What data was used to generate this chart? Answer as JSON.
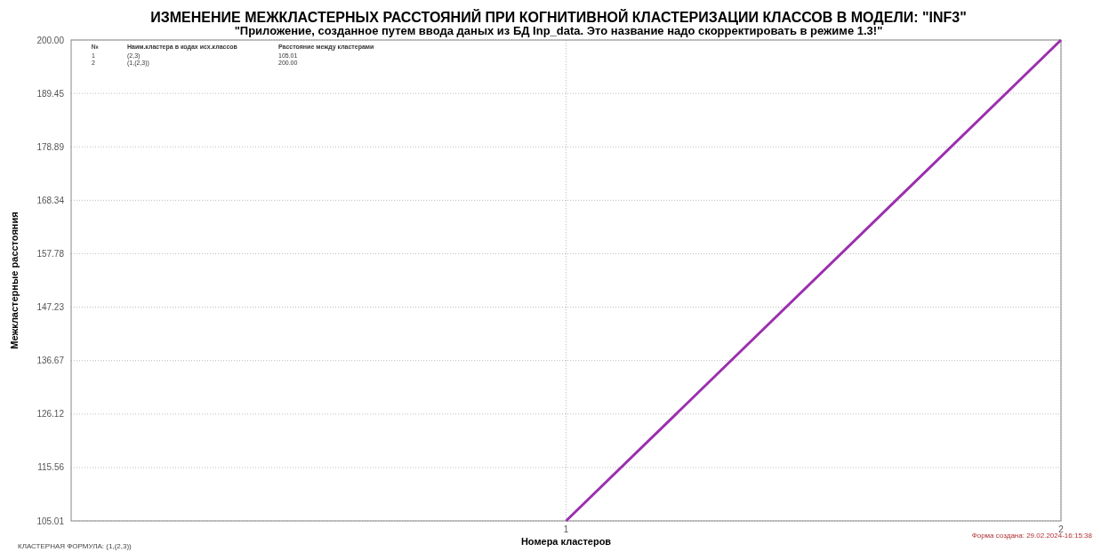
{
  "chart_data": {
    "type": "line",
    "title": "ИЗМЕНЕНИЕ МЕЖКЛАСТЕРНЫХ РАССТОЯНИЙ ПРИ КОГНИТИВНОЙ КЛАСТЕРИЗАЦИИ КЛАССОВ В МОДЕЛИ: \"INF3\"",
    "subtitle": "\"Приложение, созданное путем ввода даных из БД Inp_data. Это название надо скорректировать в режиме 1.3!\"",
    "xlabel": "Номера кластеров",
    "ylabel": "Межкластерные расстояния",
    "x": [
      1,
      2
    ],
    "series": [
      {
        "color": "#9b2fae",
        "values": [
          105.01,
          200.0
        ]
      }
    ],
    "xlim": [
      0,
      2
    ],
    "xticks": [
      1,
      2
    ],
    "ylim": [
      105.01,
      200.0
    ],
    "yticks": [
      105.01,
      115.56,
      126.12,
      136.67,
      147.23,
      157.78,
      168.34,
      178.89,
      189.45,
      {
        "value": 200.0,
        "label": "200.00"
      }
    ],
    "grid": true,
    "marker": "none",
    "line_style": "solid",
    "annotations": [
      "№",
      "Наим.кластера в кодах исх.классов",
      "Расстояние между кластерами",
      "1",
      "(2,3)",
      "105.01",
      "2",
      "(1,(2,3))",
      "200.00",
      "КЛАСТЕРНАЯ ФОРМУЛА: (1,(2,3))",
      "Форма создана: 29.02.2024-16:15:38"
    ]
  }
}
